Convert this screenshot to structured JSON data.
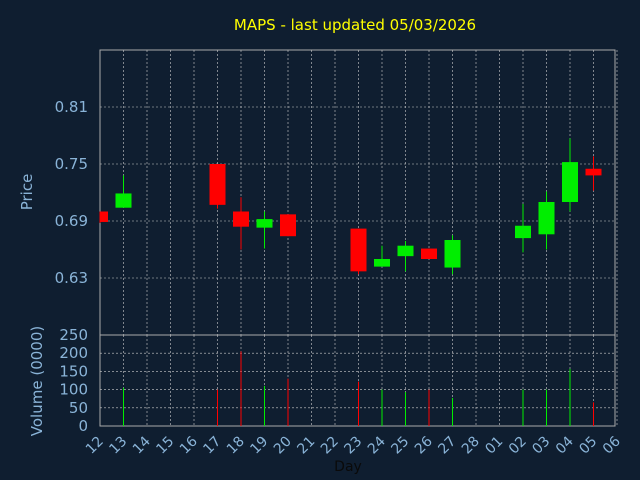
{
  "chart_data": {
    "type": "candlestick",
    "title": "MAPS - last updated 05/03/2026",
    "xlabel": "Day",
    "price_panel": {
      "ylabel": "Price",
      "yticks": [
        "0.81",
        "0.75",
        "0.69",
        "0.63"
      ],
      "ylim": [
        0.57,
        0.87
      ]
    },
    "volume_panel": {
      "ylabel": "Volume (0000)",
      "yticks": [
        "250",
        "200",
        "150",
        "100",
        "50",
        "0"
      ],
      "ylim": [
        0,
        250
      ]
    },
    "x_ticks": [
      "12",
      "13",
      "14",
      "15",
      "16",
      "17",
      "18",
      "19",
      "20",
      "21",
      "22",
      "23",
      "24",
      "25",
      "26",
      "27",
      "28",
      "01",
      "02",
      "03",
      "04",
      "05",
      "06"
    ],
    "grid": true,
    "colors": {
      "background": "#0f1e30",
      "up": "#00ee00",
      "down": "#ff0000",
      "title": "#ffff00",
      "axis_text": "#8ab4d8",
      "grid": "#cccccc",
      "frame": "#aaaaaa"
    },
    "candles": [
      {
        "day": "12",
        "open": 0.7,
        "high": 0.7,
        "low": 0.688,
        "close": 0.689,
        "volume": 0
      },
      {
        "day": "13",
        "open": 0.704,
        "high": 0.738,
        "low": 0.704,
        "close": 0.719,
        "volume": 105
      },
      {
        "day": "17",
        "open": 0.75,
        "high": 0.75,
        "low": 0.703,
        "close": 0.707,
        "volume": 100
      },
      {
        "day": "18",
        "open": 0.7,
        "high": 0.715,
        "low": 0.66,
        "close": 0.684,
        "volume": 205
      },
      {
        "day": "19",
        "open": 0.683,
        "high": 0.7,
        "low": 0.661,
        "close": 0.692,
        "volume": 110
      },
      {
        "day": "20",
        "open": 0.697,
        "high": 0.697,
        "low": 0.674,
        "close": 0.674,
        "volume": 130
      },
      {
        "day": "23",
        "open": 0.682,
        "high": 0.682,
        "low": 0.634,
        "close": 0.637,
        "volume": 122
      },
      {
        "day": "24",
        "open": 0.642,
        "high": 0.664,
        "low": 0.642,
        "close": 0.65,
        "volume": 100
      },
      {
        "day": "25",
        "open": 0.653,
        "high": 0.669,
        "low": 0.637,
        "close": 0.664,
        "volume": 93
      },
      {
        "day": "26",
        "open": 0.661,
        "high": 0.661,
        "low": 0.65,
        "close": 0.65,
        "volume": 100
      },
      {
        "day": "27",
        "open": 0.641,
        "high": 0.675,
        "low": 0.634,
        "close": 0.67,
        "volume": 77
      },
      {
        "day": "02",
        "open": 0.672,
        "high": 0.708,
        "low": 0.657,
        "close": 0.685,
        "volume": 100
      },
      {
        "day": "03",
        "open": 0.676,
        "high": 0.721,
        "low": 0.66,
        "close": 0.71,
        "volume": 100
      },
      {
        "day": "04",
        "open": 0.71,
        "high": 0.777,
        "low": 0.7,
        "close": 0.752,
        "volume": 157
      },
      {
        "day": "05",
        "open": 0.745,
        "high": 0.758,
        "low": 0.722,
        "close": 0.738,
        "volume": 65
      }
    ]
  }
}
